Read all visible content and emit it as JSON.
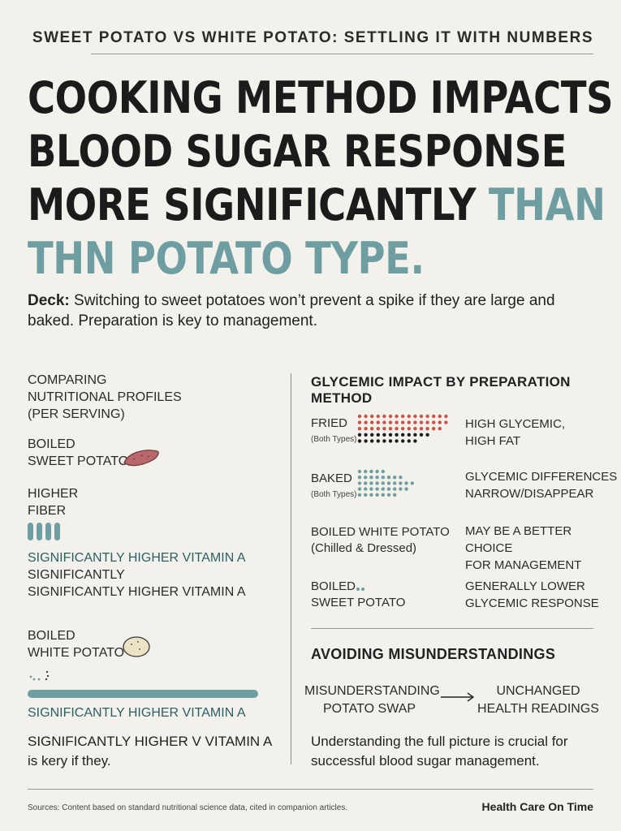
{
  "kicker": "SWEET POTATO VS WHITE POTATO: SETTLING IT WITH NUMBERS",
  "headline": {
    "dark": "COOKING METHOD IMPACTS BLOOD SUGAR RESPONSE MORE SIGNIFICANTLY",
    "teal": "THAN THN POTATO TYPE."
  },
  "deck": {
    "label": "Deck:",
    "text": "Switching to sweet potatoes won’t prevent a spike if they are large and baked. Preparation is key to management."
  },
  "left": {
    "heading_lines": [
      "COMPARING",
      "NUTRITIONAL PROFILES",
      "(PER SERVING)"
    ],
    "sweet_label_lines": [
      "BOILED",
      "SWEET POTATO"
    ],
    "fiber_lines": [
      "HIGHER",
      "FIBER"
    ],
    "vitamin_lines": [
      "SIGNIFICANTLY HIGHER VITAMIN A",
      "SIGNIFICANTLY",
      "SIGNIFICANTLY HIGHER VITAMIN A"
    ],
    "white_label_lines": [
      "BOILED",
      "WHITE POTATO"
    ],
    "white_vitamin": "SIGNIFICANTLY HIGHER VITAMIN A",
    "white_note_lines": [
      "SIGNIFICANTLY HIGHER V VITAMIN A",
      "is kery if they."
    ]
  },
  "right": {
    "heading": "GLYCEMIC IMPACT BY PREPARATION METHOD",
    "rows": [
      {
        "label_lines": [
          "FRIED"
        ],
        "sub": "(Both Types)",
        "desc_lines": [
          "HIGH GLYCEMIC,",
          "HIGH FAT"
        ]
      },
      {
        "label_lines": [
          "BAKED"
        ],
        "sub": "(Both Types)",
        "desc_lines": [
          "GLYCEMIC DIFFERENCES",
          "NARROW/DISAPPEAR"
        ]
      },
      {
        "label_lines": [
          "BOILED WHITE POTATO",
          "(Chilled & Dressed)"
        ],
        "sub": "",
        "desc_lines": [
          "MAY BE A BETTER CHOICE",
          "FOR MANAGEMENT"
        ]
      },
      {
        "label_lines": [
          "BOILED",
          "SWEET POTATO"
        ],
        "sub": "",
        "desc_lines": [
          "GENERALLY LOWER",
          "GLYCEMIC RESPONSE"
        ]
      }
    ],
    "avoid_heading": "AVOIDING MISUNDERSTANDINGS",
    "flow_left_lines": [
      "MISUNDERSTANDING",
      "POTATO SWAP"
    ],
    "flow_right_lines": [
      "UNCHANGED",
      "HEALTH READINGS"
    ],
    "closing": "Understanding the full picture is crucial for successful blood sugar management."
  },
  "footer": {
    "sources": "Sources: Content based on standard nutritional science data, cited in companion articles.",
    "brand": "Health Care On Time"
  },
  "colors": {
    "teal": "#6e9ea1",
    "red": "#c8534a",
    "black": "#1e1e1e",
    "background": "#f2f1ec"
  }
}
